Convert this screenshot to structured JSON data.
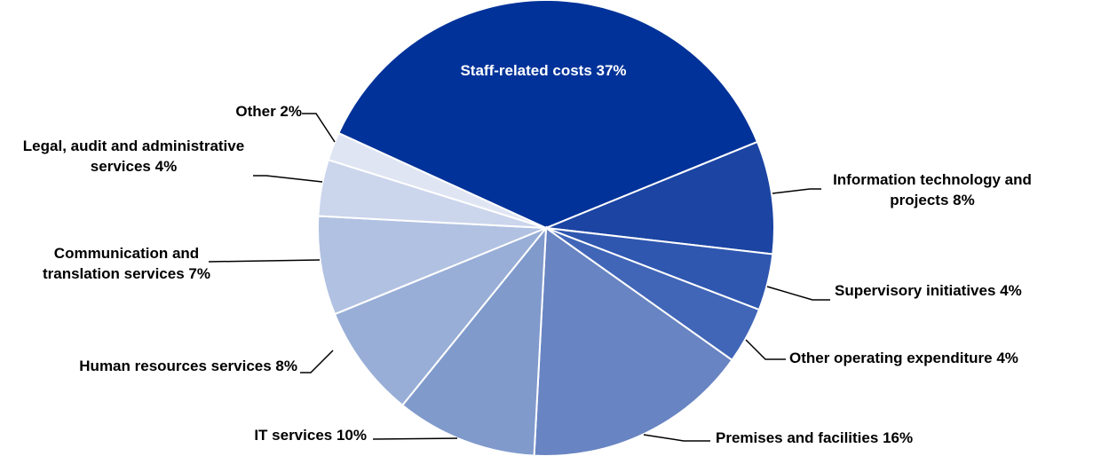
{
  "chart_data": {
    "type": "pie",
    "categories": [
      "Staff-related costs",
      "Information technology and projects",
      "Supervisory initiatives",
      "Other operating expenditure",
      "Premises and facilities",
      "IT services",
      "Human resources services",
      "Communication and translation services",
      "Legal, audit and administrative services",
      "Other"
    ],
    "values": [
      37,
      8,
      4,
      4,
      16,
      10,
      8,
      7,
      4,
      2
    ],
    "value_labels": [
      "37%",
      "8%",
      "4%",
      "4%",
      "16%",
      "10%",
      "8%",
      "7%",
      "4%",
      "2%"
    ],
    "colors": [
      "#003299",
      "#1b44a3",
      "#2f57b0",
      "#4166b8",
      "#6884c2",
      "#809acc",
      "#98aed7",
      "#b1c1e2",
      "#cbd5ec",
      "#dfe5f3"
    ]
  }
}
